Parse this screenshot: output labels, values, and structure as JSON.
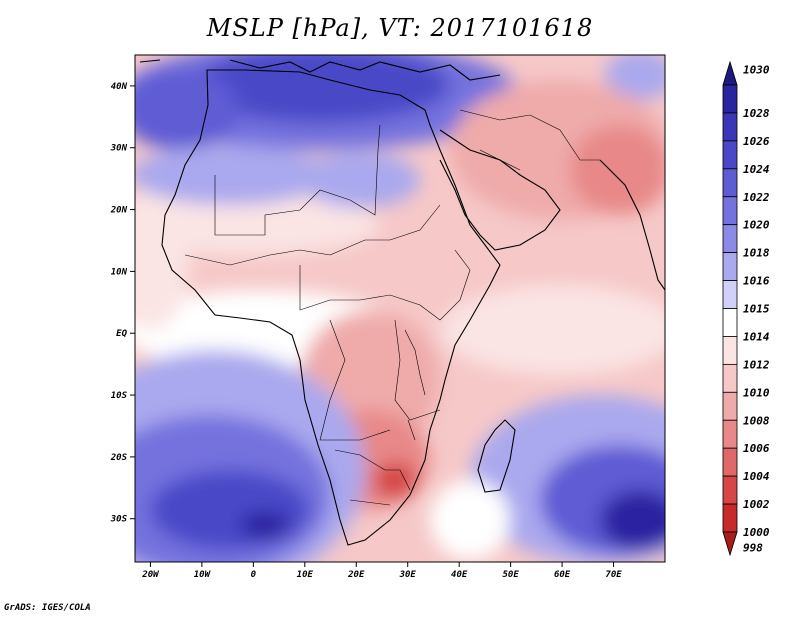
{
  "title": "MSLP [hPa], VT: 2017101618",
  "footer": "GrADS: IGES/COLA",
  "map": {
    "region": "Africa",
    "lon_range": [
      -23,
      80
    ],
    "lat_range": [
      -37,
      45
    ],
    "lat_ticks": [
      {
        "lat": 40,
        "label": "40N"
      },
      {
        "lat": 30,
        "label": "30N"
      },
      {
        "lat": 20,
        "label": "20N"
      },
      {
        "lat": 10,
        "label": "10N"
      },
      {
        "lat": 0,
        "label": "EQ"
      },
      {
        "lat": -10,
        "label": "10S"
      },
      {
        "lat": -20,
        "label": "20S"
      },
      {
        "lat": -30,
        "label": "30S"
      }
    ],
    "lon_ticks": [
      {
        "lon": -20,
        "label": "20W"
      },
      {
        "lon": -10,
        "label": "10W"
      },
      {
        "lon": 0,
        "label": "0"
      },
      {
        "lon": 10,
        "label": "10E"
      },
      {
        "lon": 20,
        "label": "20E"
      },
      {
        "lon": 30,
        "label": "30E"
      },
      {
        "lon": 40,
        "label": "40E"
      },
      {
        "lon": 50,
        "label": "50E"
      },
      {
        "lon": 60,
        "label": "60E"
      },
      {
        "lon": 70,
        "label": "70E"
      }
    ]
  },
  "colorbar": {
    "levels": [
      {
        "label": "1030",
        "color": "#1e1880"
      },
      {
        "label": "1028",
        "color": "#2a24a0"
      },
      {
        "label": "1026",
        "color": "#3a36b8"
      },
      {
        "label": "1024",
        "color": "#4a48c8"
      },
      {
        "label": "1022",
        "color": "#5e5cd4"
      },
      {
        "label": "1020",
        "color": "#7472de"
      },
      {
        "label": "1018",
        "color": "#8c8ae6"
      },
      {
        "label": "1016",
        "color": "#aaa8ee"
      },
      {
        "label": "1015",
        "color": "#d0d0f8"
      },
      {
        "label": "1014",
        "color": "#ffffff"
      },
      {
        "label": "1012",
        "color": "#fbe4e4"
      },
      {
        "label": "1010",
        "color": "#f6c8c8"
      },
      {
        "label": "1008",
        "color": "#efaaaa"
      },
      {
        "label": "1006",
        "color": "#e88888"
      },
      {
        "label": "1004",
        "color": "#e06868"
      },
      {
        "label": "1002",
        "color": "#d64646"
      },
      {
        "label": "1000",
        "color": "#c82a2a"
      },
      {
        "label": "998",
        "color": "#a81c1c"
      }
    ]
  }
}
